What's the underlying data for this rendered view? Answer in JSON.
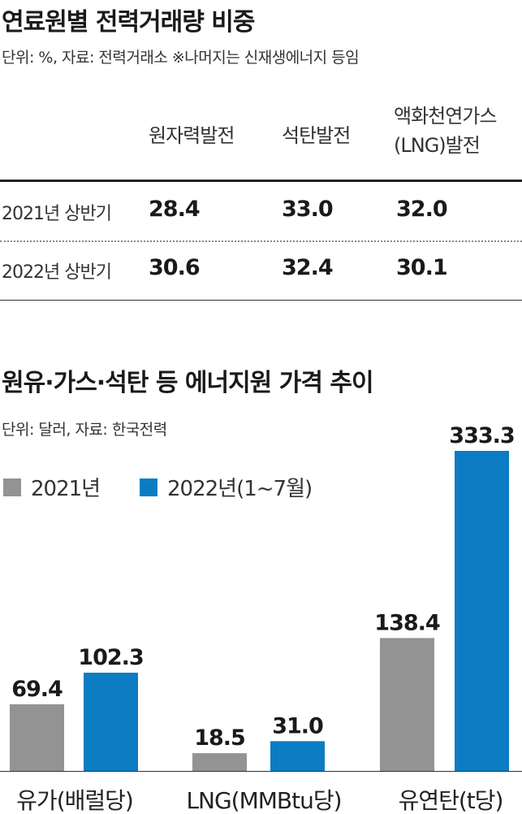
{
  "table_section": {
    "title": "연료원별 전력거래량 비중",
    "source": "단위: %, 자료: 전력거래소 ※나머지는 신재생에너지 등임",
    "columns": [
      "원자력발전",
      "석탄발전",
      "액화천연가스",
      "(LNG)발전"
    ],
    "rows": [
      {
        "label": "2021년 상반기",
        "values": [
          "28.4",
          "33.0",
          "32.0"
        ]
      },
      {
        "label": "2022년 상반기",
        "values": [
          "30.6",
          "32.4",
          "30.1"
        ]
      }
    ]
  },
  "chart_section": {
    "title": "원유·가스·석탄 등 에너지원 가격 추이",
    "source": "단위: 달러, 자료: 한국전력"
  },
  "colors": {
    "gray": "#939393",
    "blue": "#0b7cc2"
  },
  "chart_data": {
    "type": "bar",
    "categories": [
      "유가(배럴당)",
      "LNG(MMBtu당)",
      "유연탄(t당)"
    ],
    "series": [
      {
        "name": "2021년",
        "values": [
          69.4,
          18.5,
          138.4
        ]
      },
      {
        "name": "2022년(1~7월)",
        "values": [
          102.3,
          31.0,
          333.3
        ]
      }
    ],
    "value_labels": [
      [
        "69.4",
        "18.5",
        "138.4"
      ],
      [
        "102.3",
        "31.0",
        "333.3"
      ]
    ],
    "ylim": [
      0,
      333.3
    ],
    "legend": "top-left",
    "grid": false
  }
}
